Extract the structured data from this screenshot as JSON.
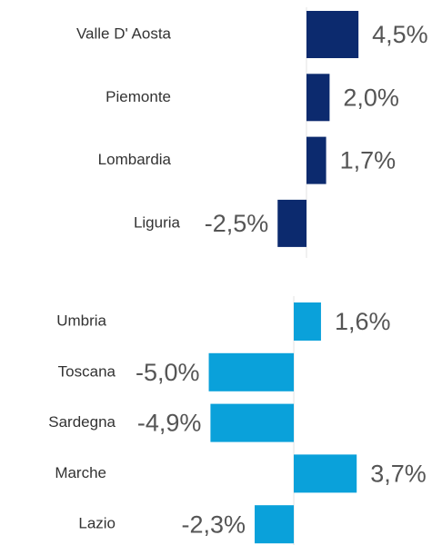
{
  "chart_data": [
    {
      "type": "bar",
      "orientation": "horizontal",
      "color": "#0c2a6e",
      "categories": [
        "Valle D' Aosta",
        "Piemonte",
        "Lombardia",
        "Liguria"
      ],
      "values": [
        4.5,
        2.0,
        1.7,
        -2.5
      ],
      "value_labels": [
        "4,5%",
        "2,0%",
        "1,7%",
        "-2,5%"
      ],
      "xlim": [
        -5,
        8
      ]
    },
    {
      "type": "bar",
      "orientation": "horizontal",
      "color": "#0aa1da",
      "categories": [
        "Umbria",
        "Toscana",
        "Sardegna",
        "Marche",
        "Lazio"
      ],
      "values": [
        1.6,
        -5.0,
        -4.9,
        3.7,
        -2.3
      ],
      "value_labels": [
        "1,6%",
        "-5,0%",
        "-4,9%",
        "3,7%",
        "-2,3%"
      ],
      "xlim": [
        -5.5,
        6
      ]
    }
  ]
}
